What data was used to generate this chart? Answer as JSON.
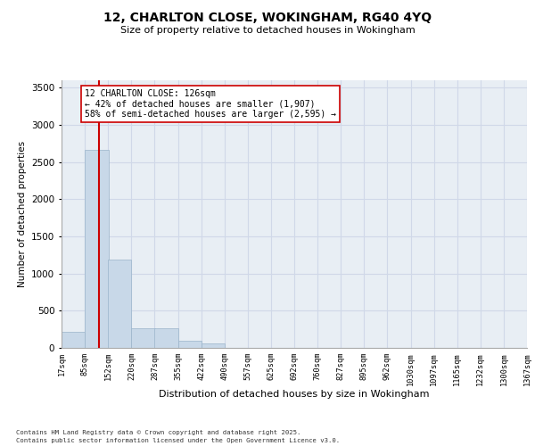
{
  "title_line1": "12, CHARLTON CLOSE, WOKINGHAM, RG40 4YQ",
  "title_line2": "Size of property relative to detached houses in Wokingham",
  "xlabel": "Distribution of detached houses by size in Wokingham",
  "ylabel": "Number of detached properties",
  "bar_color": "#c8d8e8",
  "bar_edge_color": "#9ab4ca",
  "grid_color": "#d0d8e8",
  "background_color": "#e8eef4",
  "property_line_x": 126,
  "property_line_color": "#cc0000",
  "annotation_text": "12 CHARLTON CLOSE: 126sqm\n← 42% of detached houses are smaller (1,907)\n58% of semi-detached houses are larger (2,595) →",
  "annotation_box_color": "#ffffff",
  "annotation_box_edge": "#cc0000",
  "footnote1": "Contains HM Land Registry data © Crown copyright and database right 2025.",
  "footnote2": "Contains public sector information licensed under the Open Government Licence v3.0.",
  "bins": [
    17,
    85,
    152,
    220,
    287,
    355,
    422,
    490,
    557,
    625,
    692,
    760,
    827,
    895,
    962,
    1030,
    1097,
    1165,
    1232,
    1300,
    1367
  ],
  "bin_labels": [
    "17sqm",
    "85sqm",
    "152sqm",
    "220sqm",
    "287sqm",
    "355sqm",
    "422sqm",
    "490sqm",
    "557sqm",
    "625sqm",
    "692sqm",
    "760sqm",
    "827sqm",
    "895sqm",
    "962sqm",
    "1030sqm",
    "1097sqm",
    "1165sqm",
    "1232sqm",
    "1300sqm",
    "1367sqm"
  ],
  "bar_heights": [
    220,
    2670,
    1190,
    260,
    260,
    100,
    60,
    0,
    0,
    0,
    0,
    0,
    0,
    0,
    0,
    0,
    0,
    0,
    0,
    0
  ],
  "ylim": [
    0,
    3600
  ],
  "yticks": [
    0,
    500,
    1000,
    1500,
    2000,
    2500,
    3000,
    3500
  ]
}
